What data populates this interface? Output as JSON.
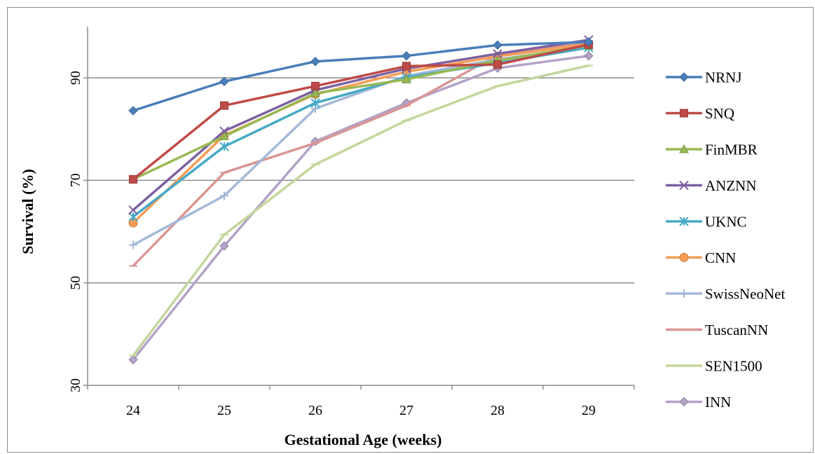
{
  "chart_data": {
    "type": "line",
    "title": "",
    "xlabel": "Gestational Age (weeks)",
    "ylabel": "Survival (%)",
    "x": [
      24,
      25,
      26,
      27,
      28,
      29
    ],
    "x_tick_labels": [
      "24",
      "25",
      "26",
      "27",
      "28",
      "29"
    ],
    "ylim": [
      30,
      100
    ],
    "yticks": [
      30,
      50,
      70,
      90
    ],
    "y_tick_labels": [
      "30",
      "50",
      "70",
      "90"
    ],
    "grid": "horizontal",
    "legend_position": "right",
    "series": [
      {
        "name": "NRNJ",
        "color": "#4a7ebb",
        "marker": "diamond",
        "values": [
          83.6,
          89.3,
          93.2,
          94.3,
          96.4,
          97.0
        ]
      },
      {
        "name": "SNQ",
        "color": "#be4b48",
        "marker": "square",
        "values": [
          70.2,
          84.6,
          88.4,
          92.3,
          92.6,
          96.5
        ]
      },
      {
        "name": "FinMBR",
        "color": "#98b954",
        "marker": "triangle",
        "values": [
          70.2,
          78.6,
          87.0,
          89.7,
          93.4,
          96.3
        ]
      },
      {
        "name": "ANZNN",
        "color": "#7d60a0",
        "marker": "x",
        "values": [
          64.2,
          79.6,
          87.6,
          91.8,
          94.7,
          97.4
        ]
      },
      {
        "name": "UKNC",
        "color": "#46aac5",
        "marker": "star",
        "values": [
          62.9,
          76.6,
          85.1,
          90.1,
          92.9,
          95.9
        ]
      },
      {
        "name": "CNN",
        "color": "#f59d56",
        "marker": "circle",
        "values": [
          61.7,
          78.8,
          86.8,
          91.2,
          94.2,
          96.6
        ]
      },
      {
        "name": "SwissNeoNet",
        "color": "#a5b9d9",
        "marker": "plus",
        "values": [
          57.4,
          67.0,
          84.0,
          90.4,
          93.6,
          96.1
        ]
      },
      {
        "name": "TuscanNN",
        "color": "#d99694",
        "marker": "dash",
        "values": [
          53.3,
          71.5,
          77.3,
          84.6,
          94.5,
          96.8
        ]
      },
      {
        "name": "SEN1500",
        "color": "#c3d69b",
        "marker": "dash",
        "values": [
          35.8,
          59.4,
          73.1,
          81.7,
          88.4,
          92.4
        ]
      },
      {
        "name": "INN",
        "color": "#b3a2c7",
        "marker": "diamond",
        "values": [
          35.0,
          57.2,
          77.6,
          85.1,
          91.9,
          94.3
        ]
      }
    ]
  }
}
